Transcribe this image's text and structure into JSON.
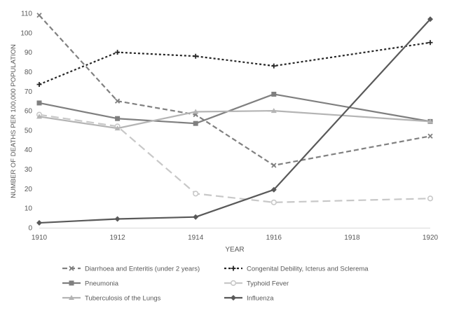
{
  "chart_data": {
    "type": "line",
    "xlabel": "YEAR",
    "ylabel": "NUMBER  OF DEATHS PER 100,000 POPULATION",
    "xlim": [
      1910,
      1920
    ],
    "ylim": [
      0,
      110
    ],
    "x_ticks": [
      "1910",
      "1912",
      "1914",
      "1916",
      "1918",
      "1920"
    ],
    "y_ticks": [
      "0",
      "10",
      "20",
      "30",
      "40",
      "50",
      "60",
      "70",
      "80",
      "90",
      "100",
      "110"
    ],
    "grid": false,
    "legend_position": "bottom",
    "series": [
      {
        "name": "Diarrhoea and Enteritis (under 2 years)",
        "x": [
          1910,
          1912,
          1914,
          1916,
          1920
        ],
        "values": [
          109,
          65,
          58,
          32,
          47
        ],
        "color": "#808080",
        "dash": "dashed",
        "marker": "x"
      },
      {
        "name": "Congenital Debility, Icterus and Sclerema",
        "x": [
          1910,
          1912,
          1914,
          1916,
          1920
        ],
        "values": [
          73.5,
          90,
          88,
          83,
          95
        ],
        "color": "#262626",
        "dash": "dotted",
        "marker": "plus"
      },
      {
        "name": "Pneumonia",
        "x": [
          1910,
          1912,
          1914,
          1916,
          1920
        ],
        "values": [
          64,
          56,
          53.5,
          68.5,
          54.5
        ],
        "color": "#7f7f7f",
        "dash": "solid",
        "marker": "square"
      },
      {
        "name": "Typhoid Fever",
        "x": [
          1910,
          1912,
          1914,
          1916,
          1920
        ],
        "values": [
          58,
          52,
          17.5,
          13,
          15
        ],
        "color": "#c8c8c8",
        "dash": "longdash",
        "marker": "circle"
      },
      {
        "name": "Tuberculosis of the Lungs",
        "x": [
          1910,
          1912,
          1914,
          1916,
          1920
        ],
        "values": [
          57,
          51,
          59.5,
          60,
          54.5
        ],
        "color": "#b4b4b4",
        "dash": "solid",
        "marker": "triangle"
      },
      {
        "name": "Influenza",
        "x": [
          1910,
          1912,
          1914,
          1916,
          1920
        ],
        "values": [
          2.5,
          4.5,
          5.5,
          19.5,
          107
        ],
        "color": "#595959",
        "dash": "solid",
        "marker": "diamond"
      }
    ]
  }
}
